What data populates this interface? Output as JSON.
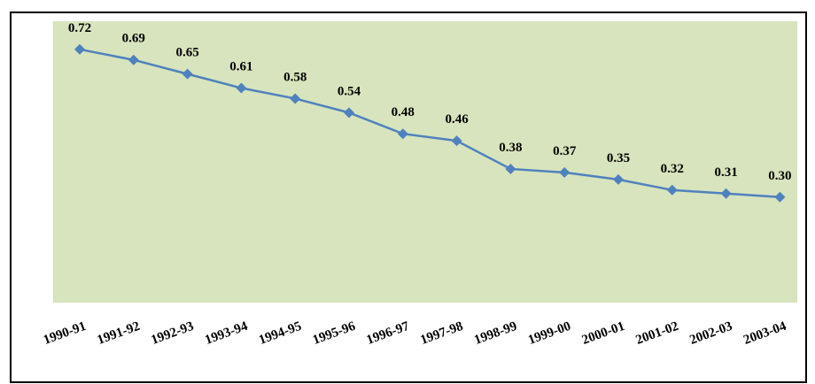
{
  "chart_data": {
    "type": "line",
    "categories": [
      "1990-91",
      "1991-92",
      "1992-93",
      "1993-94",
      "1994-95",
      "1995-96",
      "1996-97",
      "1997-98",
      "1998-99",
      "1999-00",
      "2000-01",
      "2001-02",
      "2002-03",
      "2003-04"
    ],
    "values": [
      0.72,
      0.69,
      0.65,
      0.61,
      0.58,
      0.54,
      0.48,
      0.46,
      0.38,
      0.37,
      0.35,
      0.32,
      0.31,
      0.3
    ],
    "value_labels": [
      "0.72",
      "0.69",
      "0.65",
      "0.61",
      "0.58",
      "0.54",
      "0.48",
      "0.46",
      "0.38",
      "0.37",
      "0.35",
      "0.32",
      "0.31",
      "0.30"
    ],
    "color": "#4f81bd",
    "plot_background": "#d7e4bd",
    "ylim": [
      0,
      0.8
    ]
  }
}
